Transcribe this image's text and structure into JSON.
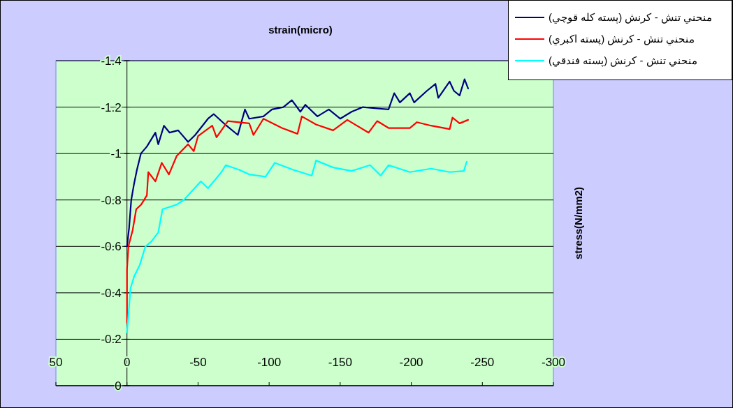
{
  "chart_data": {
    "type": "line",
    "title": "strain(micro)",
    "ylabel": "stress(N/mm2)",
    "xlim": [
      50,
      -300
    ],
    "xticks": [
      50,
      0,
      -50,
      -100,
      -150,
      -200,
      -250,
      -300
    ],
    "ylim": [
      0,
      -1.4
    ],
    "yticks": [
      0,
      -0.2,
      -0.4,
      -0.6,
      -0.8,
      -1,
      -1.2,
      -1.4
    ],
    "grid": "y",
    "legend": "top right",
    "marker": "none",
    "line_style": "solid",
    "series": [
      {
        "name": "منحني تنش - كرنش (پسته كله قوچي)",
        "color": "#000080",
        "x": [
          0,
          -1.5,
          -3,
          -5,
          -7,
          -9.8,
          -14,
          -20,
          -22,
          -26,
          -30,
          -36,
          -43,
          -48,
          -57,
          -61,
          -70,
          -78,
          -83,
          -86,
          -96,
          -102,
          -110,
          -116,
          -122,
          -125.5,
          -134,
          -142,
          -150,
          -158,
          -166,
          -174.5,
          -184,
          -188,
          -192,
          -199,
          -202,
          -211,
          -217,
          -219,
          -227,
          -230,
          -234,
          -237.5,
          -240
        ],
        "values": [
          -0.6,
          -0.68,
          -0.8,
          -0.87,
          -0.93,
          -1.0,
          -1.03,
          -1.09,
          -1.04,
          -1.12,
          -1.09,
          -1.1,
          -1.05,
          -1.08,
          -1.15,
          -1.17,
          -1.12,
          -1.08,
          -1.19,
          -1.15,
          -1.16,
          -1.19,
          -1.2,
          -1.23,
          -1.18,
          -1.21,
          -1.16,
          -1.19,
          -1.15,
          -1.18,
          -1.2,
          -1.195,
          -1.19,
          -1.26,
          -1.22,
          -1.26,
          -1.22,
          -1.27,
          -1.3,
          -1.24,
          -1.31,
          -1.27,
          -1.25,
          -1.32,
          -1.28
        ]
      },
      {
        "name": "منحني تنش - كرنش (پسته اكبري)",
        "color": "#ff0000",
        "x": [
          0,
          0,
          -1,
          -4,
          -6.5,
          -10,
          -14,
          -15,
          -20,
          -24.5,
          -29.5,
          -35,
          -43,
          -47,
          -50,
          -60,
          -63,
          -71,
          -86,
          -89,
          -96,
          -109,
          -120,
          -123,
          -133,
          -145,
          -155,
          -170,
          -176,
          -184,
          -199,
          -204,
          -214,
          -227,
          -229,
          -234,
          -240
        ],
        "values": [
          -0.27,
          -0.5,
          -0.6,
          -0.67,
          -0.76,
          -0.78,
          -0.82,
          -0.92,
          -0.88,
          -0.96,
          -0.91,
          -0.99,
          -1.04,
          -1.01,
          -1.075,
          -1.12,
          -1.07,
          -1.14,
          -1.13,
          -1.08,
          -1.15,
          -1.11,
          -1.085,
          -1.16,
          -1.125,
          -1.1,
          -1.145,
          -1.09,
          -1.14,
          -1.11,
          -1.11,
          -1.135,
          -1.12,
          -1.105,
          -1.155,
          -1.13,
          -1.145
        ]
      },
      {
        "name": "منحني تنش - كرنش (پسته فندقي)",
        "color": "#00ffff",
        "x": [
          0,
          -1,
          -2.5,
          -5,
          -9,
          -13,
          -17,
          -22,
          -25,
          -30,
          -35,
          -40,
          -43,
          -52,
          -57,
          -66.5,
          -69.5,
          -79,
          -86,
          -97.5,
          -104,
          -117,
          -130,
          -133,
          -145,
          -158,
          -171,
          -178.5,
          -184,
          -199,
          -214,
          -227,
          -237,
          -239
        ],
        "values": [
          -0.23,
          -0.3,
          -0.42,
          -0.47,
          -0.52,
          -0.6,
          -0.62,
          -0.66,
          -0.76,
          -0.77,
          -0.78,
          -0.8,
          -0.82,
          -0.88,
          -0.85,
          -0.92,
          -0.95,
          -0.93,
          -0.91,
          -0.9,
          -0.96,
          -0.93,
          -0.905,
          -0.97,
          -0.94,
          -0.925,
          -0.95,
          -0.905,
          -0.95,
          -0.92,
          -0.935,
          -0.92,
          -0.925,
          -0.965
        ]
      }
    ]
  }
}
